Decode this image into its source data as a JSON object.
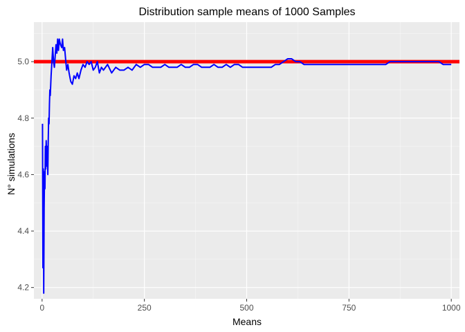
{
  "chart_data": {
    "type": "line",
    "title": "Distribution sample means of 1000 Samples",
    "xlabel": "Means",
    "ylabel": "N° simulations",
    "xlim": [
      -20,
      1020
    ],
    "ylim": [
      4.16,
      5.14
    ],
    "x_ticks": [
      0,
      250,
      500,
      750,
      1000
    ],
    "x_tick_labels": [
      "0",
      "250",
      "500",
      "750",
      "1000"
    ],
    "y_ticks": [
      4.2,
      4.4,
      4.6,
      4.8,
      5.0
    ],
    "y_tick_labels": [
      "4.2",
      "4.4",
      "4.6",
      "4.8",
      "5.0"
    ],
    "grid": true,
    "hline": {
      "y": 5.0,
      "color": "#ff0000"
    },
    "series": [
      {
        "color": "#0000ff",
        "x": [
          1,
          2,
          3,
          4,
          5,
          6,
          7,
          8,
          9,
          10,
          11,
          12,
          13,
          14,
          15,
          16,
          17,
          18,
          19,
          20,
          22,
          24,
          26,
          28,
          30,
          32,
          34,
          36,
          38,
          40,
          42,
          45,
          48,
          50,
          52,
          55,
          58,
          60,
          63,
          66,
          70,
          74,
          78,
          82,
          86,
          90,
          95,
          100,
          105,
          110,
          115,
          120,
          125,
          130,
          135,
          140,
          145,
          150,
          160,
          170,
          180,
          190,
          200,
          210,
          220,
          230,
          240,
          250,
          260,
          270,
          280,
          290,
          300,
          310,
          320,
          330,
          340,
          350,
          360,
          370,
          380,
          390,
          400,
          410,
          420,
          430,
          440,
          450,
          460,
          470,
          480,
          490,
          500,
          510,
          520,
          530,
          540,
          550,
          560,
          570,
          580,
          590,
          600,
          610,
          620,
          630,
          640,
          650,
          660,
          670,
          680,
          690,
          700,
          710,
          720,
          730,
          740,
          750,
          760,
          770,
          780,
          790,
          800,
          810,
          820,
          830,
          840,
          850,
          860,
          870,
          880,
          890,
          900,
          910,
          920,
          930,
          940,
          950,
          960,
          970,
          980,
          990,
          1000
        ],
        "y": [
          4.78,
          4.27,
          4.62,
          4.18,
          4.48,
          4.61,
          4.55,
          4.7,
          4.62,
          4.72,
          4.68,
          4.63,
          4.7,
          4.6,
          4.72,
          4.8,
          4.78,
          4.85,
          4.9,
          4.88,
          4.95,
          5.0,
          5.05,
          5.0,
          4.98,
          5.02,
          5.06,
          5.03,
          5.08,
          5.04,
          5.08,
          5.06,
          5.05,
          5.08,
          5.04,
          5.05,
          5.0,
          4.97,
          4.99,
          4.96,
          4.93,
          4.92,
          4.95,
          4.94,
          4.96,
          4.94,
          4.97,
          4.99,
          4.98,
          5.0,
          4.99,
          5.0,
          4.97,
          4.98,
          5.0,
          4.96,
          4.98,
          4.97,
          4.99,
          4.96,
          4.98,
          4.97,
          4.97,
          4.98,
          4.97,
          4.99,
          4.98,
          4.99,
          4.99,
          4.98,
          4.98,
          4.98,
          4.99,
          4.98,
          4.98,
          4.98,
          4.99,
          4.98,
          4.98,
          4.99,
          4.99,
          4.98,
          4.98,
          4.98,
          4.99,
          4.98,
          4.98,
          4.99,
          4.98,
          4.99,
          4.99,
          4.98,
          4.98,
          4.98,
          4.98,
          4.98,
          4.98,
          4.98,
          4.98,
          4.99,
          4.99,
          5.0,
          5.01,
          5.01,
          5.0,
          5.0,
          4.99,
          4.99,
          4.99,
          4.99,
          4.99,
          4.99,
          4.99,
          4.99,
          4.99,
          4.99,
          4.99,
          4.99,
          4.99,
          4.99,
          4.99,
          4.99,
          4.99,
          4.99,
          4.99,
          4.99,
          4.99,
          5.0,
          5.0,
          5.0,
          5.0,
          5.0,
          5.0,
          5.0,
          5.0,
          5.0,
          5.0,
          5.0,
          5.0,
          5.0,
          4.99,
          4.99,
          4.99
        ]
      }
    ]
  }
}
